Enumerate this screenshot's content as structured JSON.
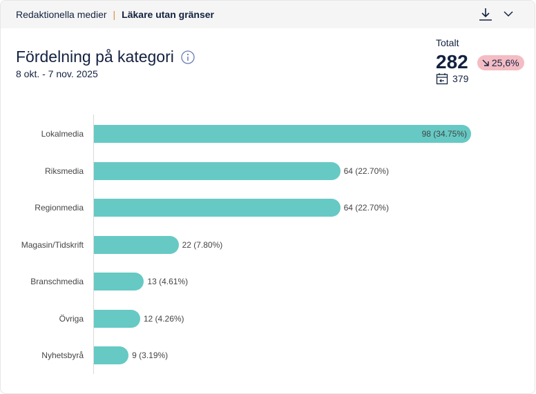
{
  "header": {
    "breadcrumb_parent": "Redaktionella medier",
    "breadcrumb_separator": "|",
    "breadcrumb_current": "Läkare utan gränser"
  },
  "title": "Fördelning på kategori",
  "date_range": "8 okt. - 7 nov. 2025",
  "total": {
    "label": "Totalt",
    "value": "282",
    "change": "25,6%",
    "previous": "379",
    "change_color": "#f4bcc3"
  },
  "chart_data": {
    "type": "bar",
    "orientation": "horizontal",
    "categories": [
      "Lokalmedia",
      "Riksmedia",
      "Regionmedia",
      "Magasin/Tidskrift",
      "Branschmedia",
      "Övriga",
      "Nyhetsbyrå"
    ],
    "values": [
      98,
      64,
      64,
      22,
      13,
      12,
      9
    ],
    "labels": [
      "98 (34.75%)",
      "64 (22.70%)",
      "64 (22.70%)",
      "22 (7.80%)",
      "13 (4.61%)",
      "12 (4.26%)",
      "9 (3.19%)"
    ],
    "color": "#66c9c4",
    "xlim": [
      0,
      98
    ]
  }
}
